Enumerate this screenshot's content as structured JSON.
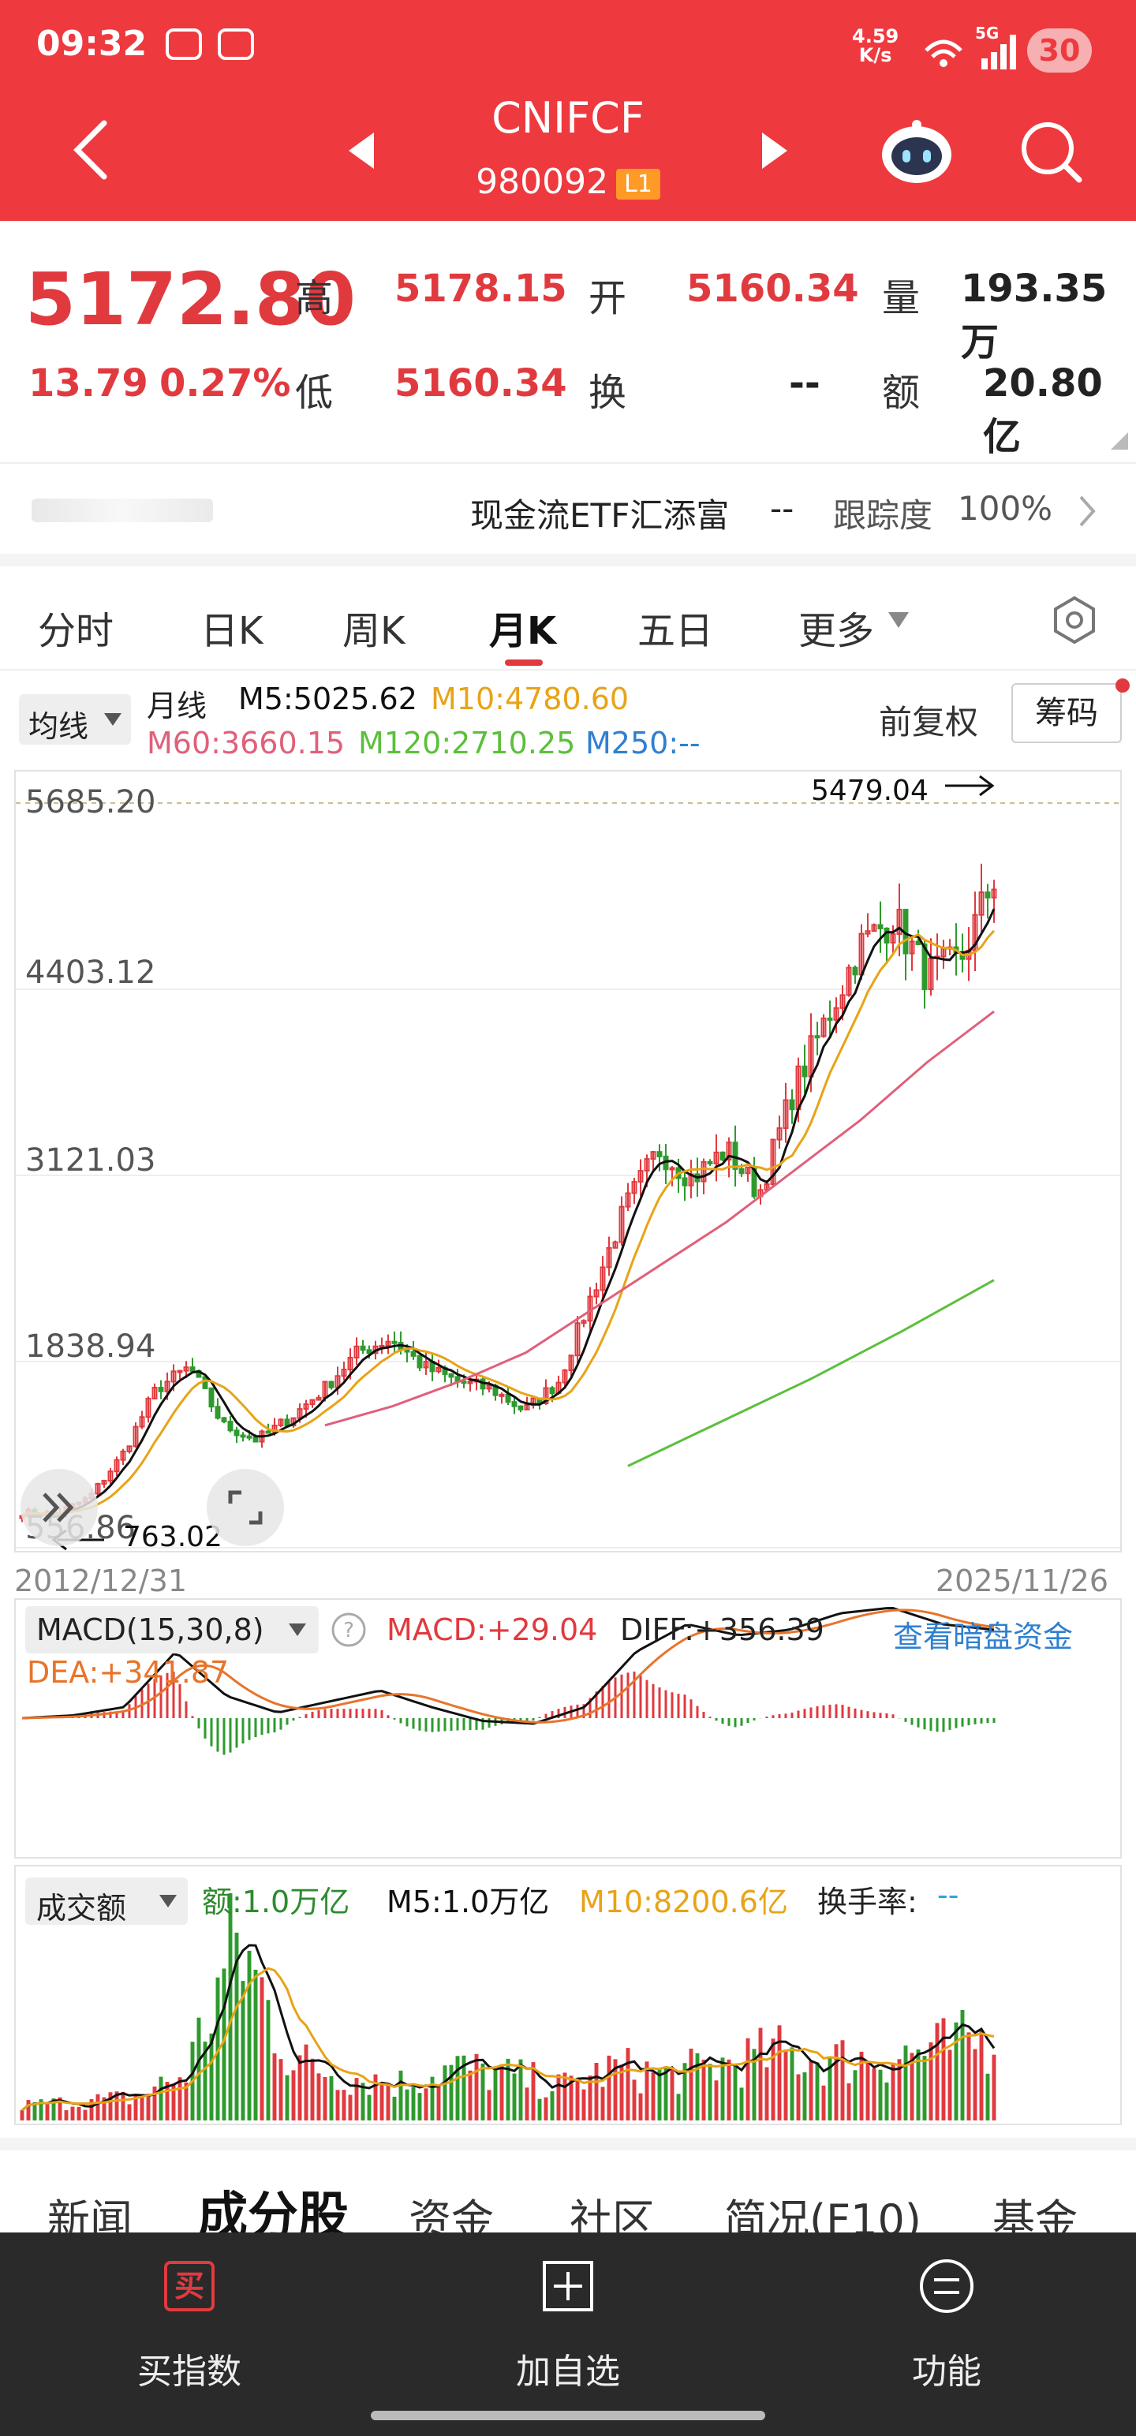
{
  "status": {
    "time": "09:32",
    "speed_value": "4.59",
    "speed_unit": "K/s",
    "network": "5G",
    "battery": "30"
  },
  "header": {
    "title": "CNIFCF",
    "code": "980092",
    "badge": "L1"
  },
  "quote": {
    "price": "5172.80",
    "change": "13.79",
    "change_pct": "0.27%",
    "high_label": "高",
    "high": "5178.15",
    "open_label": "开",
    "open": "5160.34",
    "volume_label": "量",
    "volume": "193.35万",
    "low_label": "低",
    "low": "5160.34",
    "turnover_label": "换",
    "turnover": "--",
    "amount_label": "额",
    "amount": "20.80亿"
  },
  "etf": {
    "name": "现金流ETF汇添富",
    "change": "--",
    "track_label": "跟踪度",
    "track_value": "100%"
  },
  "ktabs": [
    "分时",
    "日K",
    "周K",
    "月K",
    "五日",
    "更多"
  ],
  "active_ktab": "月K",
  "kchart": {
    "indicator_select": "均线",
    "type_label": "月线",
    "m5": "M5:5025.62",
    "m10": "M10:4780.60",
    "m60": "M60:3660.15",
    "m120": "M120:2710.25",
    "m250": "M250:--",
    "adjust": "前复权",
    "chips": "筹码",
    "y_ticks": [
      "5685.20",
      "4403.12",
      "3121.03",
      "1838.94",
      "556.86"
    ],
    "max_label": "5479.04",
    "min_label": "763.02",
    "start_date": "2012/12/31",
    "end_date": "2025/11/26"
  },
  "macd": {
    "select": "MACD(15,30,8)",
    "macd": "MACD:+29.04",
    "diff": "DIFF:+356.39",
    "dea": "DEA:+341.87",
    "link": "查看暗盘资金"
  },
  "volume_panel": {
    "select": "成交额",
    "amount": "额:1.0万亿",
    "m5": "M5:1.0万亿",
    "m10": "M10:8200.6亿",
    "turnover": "换手率:",
    "turnover_val": "--"
  },
  "bottom_tabs": [
    "新闻",
    "成分股",
    "资金",
    "社区",
    "简况(F10)",
    "基金"
  ],
  "active_bottom_tab": "成分股",
  "nav": {
    "buy": "买指数",
    "buy_icon_text": "买",
    "add": "加自选",
    "func": "功能"
  },
  "colors": {
    "brand": "#ee3a3f",
    "up": "#e03a3f",
    "down": "#2e9a2e",
    "m5": "#111111",
    "m10": "#e8a317",
    "m60": "#e0607a",
    "m120": "#5cbf3c",
    "m250": "#2f7fd0"
  },
  "chart_data": {
    "type": "candlestick",
    "title": "",
    "period": "monthly",
    "x_range": [
      "2012/12/31",
      "2025/11/26"
    ],
    "y_ticks": [
      5685.2,
      4403.12,
      3121.03,
      1838.94,
      556.86
    ],
    "max_point": 5479.04,
    "min_point": 763.02,
    "close_series": [
      800,
      790,
      900,
      1200,
      1650,
      1800,
      1400,
      1300,
      1450,
      1650,
      1900,
      2000,
      1800,
      1700,
      1650,
      1500,
      1700,
      2300,
      2900,
      3300,
      3100,
      3300,
      3000,
      3700,
      4200,
      4700,
      4900,
      4500,
      4600,
      5172.8
    ],
    "ma60_series": [
      1400,
      1530,
      1700,
      1900,
      2200,
      2500,
      2800,
      3150,
      3500,
      3900,
      4250
    ],
    "ma120_series": [
      1120,
      1420,
      1720,
      2050,
      2400
    ]
  }
}
